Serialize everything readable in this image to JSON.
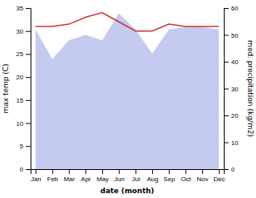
{
  "chart_data": {
    "type": "line",
    "categories": [
      "Jan",
      "Feb",
      "Mar",
      "Apr",
      "May",
      "Jun",
      "Jul",
      "Aug",
      "Sep",
      "Oct",
      "Nov",
      "Dec"
    ],
    "xlabel": "date (month)",
    "ylabel": "max temp (C)",
    "y2label": "med. precipitation (kg/m2)",
    "series": [
      {
        "type": "area",
        "axis": "y2",
        "color": "#c5caf0",
        "values": [
          52,
          41,
          48,
          50,
          48,
          58,
          52,
          43,
          52,
          53,
          53,
          52
        ]
      },
      {
        "type": "line",
        "color": "#cc3333",
        "values": [
          31.0,
          31.0,
          31.5,
          33.0,
          34.0,
          32.0,
          30.0,
          30.0,
          31.5,
          31.0,
          31.0,
          31.0
        ]
      }
    ],
    "ylim": [
      0,
      35
    ],
    "yticks": [
      0,
      5,
      10,
      15,
      20,
      25,
      30,
      35
    ],
    "y2lim": [
      0,
      60
    ],
    "y2ticks": [
      0,
      10,
      20,
      30,
      40,
      50,
      60
    ],
    "grid": false
  }
}
